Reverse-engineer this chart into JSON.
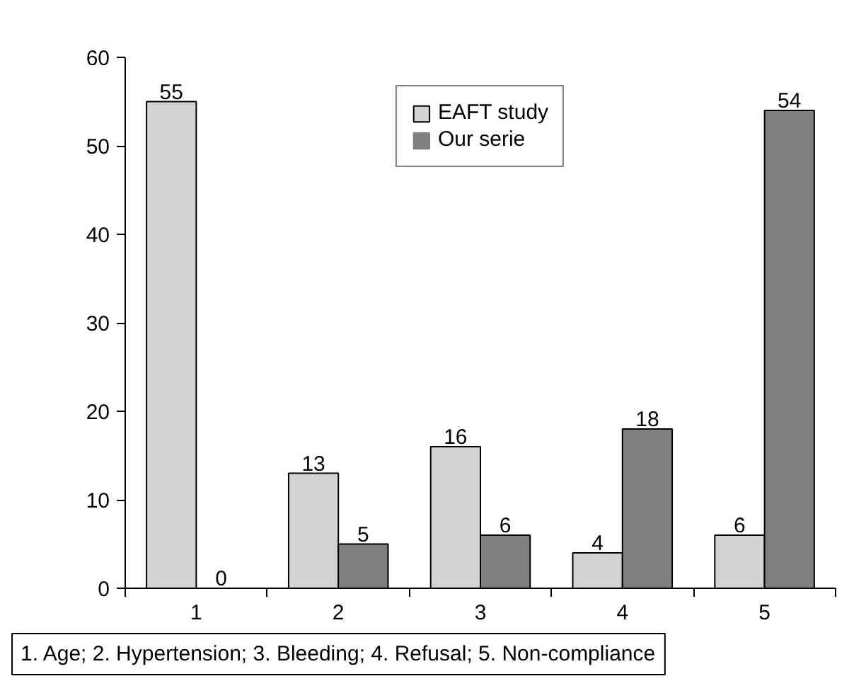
{
  "chart_data": {
    "type": "bar",
    "categories": [
      "1",
      "2",
      "3",
      "4",
      "5"
    ],
    "series": [
      {
        "name": "EAFT study",
        "color": "#d3d3d3",
        "values": [
          55,
          13,
          16,
          4,
          6
        ]
      },
      {
        "name": "Our serie",
        "color": "#808080",
        "values": [
          0,
          5,
          6,
          18,
          54
        ]
      }
    ],
    "ylim": [
      0,
      60
    ],
    "yticks": [
      0,
      10,
      20,
      30,
      40,
      50,
      60
    ],
    "grid": false,
    "legend": "top",
    "data_labels": true,
    "annotations": [
      "1. Age; 2. Hypertension; 3. Bleeding; 4. Refusal; 5. Non-compliance"
    ]
  }
}
